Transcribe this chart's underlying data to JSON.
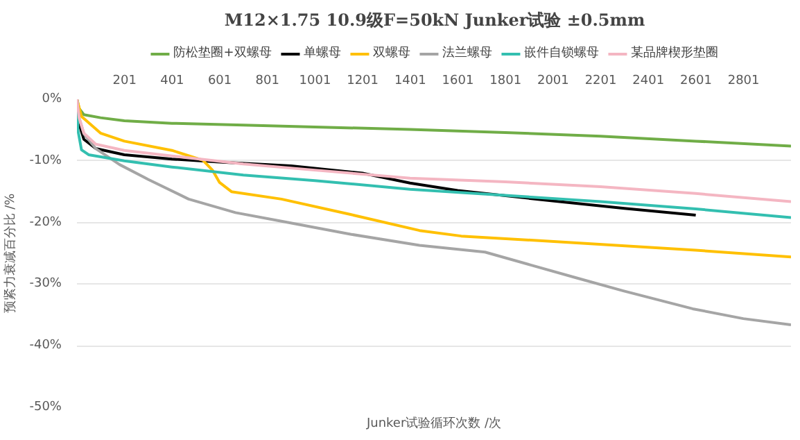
{
  "chart_data": {
    "type": "line",
    "title": "M12×1.75 10.9级F=50kN Junker试验 ±0.5mm",
    "xlabel": "Junker试验循环次数 /次",
    "ylabel": "预紧力衰减百分比 /%",
    "xlim": [
      1,
      3000
    ],
    "xticks": [
      201,
      401,
      601,
      801,
      1001,
      1201,
      1401,
      1601,
      1801,
      2001,
      2201,
      2401,
      2601,
      2801
    ],
    "ylim": [
      -50,
      0
    ],
    "yticks": [
      {
        "value": 0,
        "label": "0%"
      },
      {
        "value": -10,
        "label": "-10%"
      },
      {
        "value": -20,
        "label": "-20%"
      },
      {
        "value": -30,
        "label": "-30%"
      },
      {
        "value": -40,
        "label": "-40%"
      },
      {
        "value": -50,
        "label": "-50%"
      }
    ],
    "grid": "y",
    "legend": "top",
    "marker": "none",
    "line_style": "solid",
    "series": [
      {
        "name": "防松垫圈+双螺母",
        "color": "#70ad47",
        "x": [
          1,
          10,
          30,
          100,
          200,
          400,
          700,
          1000,
          1400,
          1800,
          2200,
          2600,
          3000
        ],
        "values": [
          0,
          -1.5,
          -2.5,
          -3.0,
          -3.5,
          -3.9,
          -4.2,
          -4.5,
          -4.9,
          -5.4,
          -6.0,
          -6.8,
          -7.6
        ]
      },
      {
        "name": "单螺母",
        "color": "#000000",
        "x": [
          1,
          10,
          30,
          80,
          200,
          400,
          600,
          900,
          1200,
          1400,
          1600,
          2000,
          2300,
          2600
        ],
        "values": [
          0,
          -4,
          -6.5,
          -8,
          -9,
          -9.7,
          -10.2,
          -10.8,
          -12,
          -13.6,
          -14.8,
          -16.5,
          -17.7,
          -18.8
        ]
      },
      {
        "name": "双螺母",
        "color": "#ffc000",
        "x": [
          1,
          20,
          100,
          200,
          400,
          530,
          570,
          600,
          650,
          860,
          1150,
          1440,
          1615,
          2100,
          2600,
          3000
        ],
        "values": [
          0,
          -2.8,
          -5.5,
          -6.8,
          -8.3,
          -9.9,
          -11.5,
          -13.5,
          -15,
          -16.2,
          -18.7,
          -21.3,
          -22.2,
          -23.3,
          -24.5,
          -25.6
        ]
      },
      {
        "name": "法兰螺母",
        "color": "#a5a5a5",
        "x": [
          1,
          10,
          30,
          80,
          180,
          300,
          470,
          667,
          860,
          1150,
          1440,
          1715,
          1907,
          2100,
          2296,
          2587,
          2800,
          3000
        ],
        "values": [
          0,
          -3,
          -5.6,
          -8,
          -10.6,
          -13,
          -16.2,
          -18.4,
          -19.8,
          -21.9,
          -23.7,
          -24.8,
          -26.9,
          -29,
          -31.1,
          -34,
          -35.6,
          -36.6
        ]
      },
      {
        "name": "嵌件自锁螺母",
        "color": "#33bfb0",
        "x": [
          1,
          5,
          20,
          50,
          200,
          400,
          700,
          1000,
          1400,
          1800,
          2200,
          2600,
          3000
        ],
        "values": [
          0,
          -5,
          -8.2,
          -9,
          -10,
          -11,
          -12.3,
          -13.2,
          -14.6,
          -15.6,
          -16.6,
          -17.8,
          -19.2
        ]
      },
      {
        "name": "某品牌楔形垫圈",
        "color": "#f4b6c2",
        "x": [
          1,
          10,
          30,
          80,
          200,
          400,
          700,
          1000,
          1400,
          1800,
          2200,
          2600,
          3000
        ],
        "values": [
          0,
          -3,
          -5.5,
          -7.3,
          -8.3,
          -9.2,
          -10.5,
          -11.5,
          -12.8,
          -13.4,
          -14.2,
          -15.3,
          -16.6
        ]
      }
    ]
  }
}
